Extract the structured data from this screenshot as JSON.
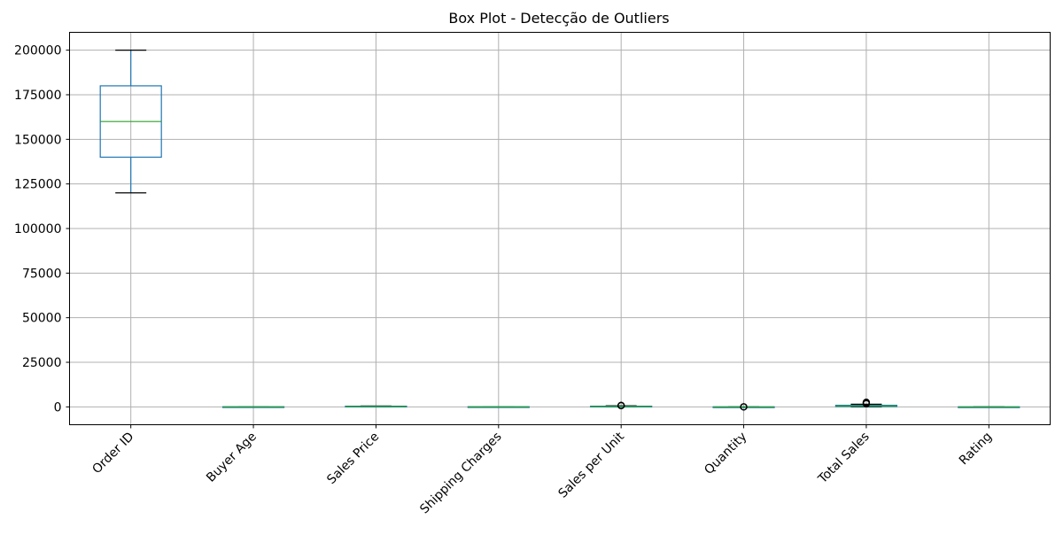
{
  "chart_data": {
    "type": "box",
    "title": "Box Plot - Detecção de Outliers",
    "xlabel": "",
    "ylabel": "",
    "ylim": [
      -10000,
      210000
    ],
    "yticks": [
      0,
      25000,
      50000,
      75000,
      100000,
      125000,
      150000,
      175000,
      200000
    ],
    "grid": true,
    "colors": {
      "box": "#1f77b4",
      "median": "#2ca02c",
      "cap": "#000000",
      "grid": "#b0b0b0",
      "flier": "#000000"
    },
    "categories": [
      "Order ID",
      "Buyer Age",
      "Sales Price",
      "Shipping Charges",
      "Sales per Unit",
      "Quantity",
      "Total Sales",
      "Rating"
    ],
    "boxes": [
      {
        "label": "Order ID",
        "whislo": 120000,
        "q1": 140000,
        "med": 160000,
        "q3": 180000,
        "whishi": 200000,
        "fliers": []
      },
      {
        "label": "Buyer Age",
        "whislo": 18,
        "q1": 30,
        "med": 42,
        "q3": 55,
        "whishi": 70,
        "fliers": []
      },
      {
        "label": "Sales Price",
        "whislo": 10,
        "q1": 100,
        "med": 250,
        "q3": 400,
        "whishi": 500,
        "fliers": []
      },
      {
        "label": "Shipping Charges",
        "whislo": 0,
        "q1": 20,
        "med": 50,
        "q3": 75,
        "whishi": 100,
        "fliers": []
      },
      {
        "label": "Sales per Unit",
        "whislo": 10,
        "q1": 100,
        "med": 250,
        "q3": 400,
        "whishi": 600,
        "fliers": [
          700,
          750,
          800
        ]
      },
      {
        "label": "Quantity",
        "whislo": 1,
        "q1": 2,
        "med": 3,
        "q3": 4,
        "whishi": 6,
        "fliers": [
          8,
          10
        ]
      },
      {
        "label": "Total Sales",
        "whislo": 10,
        "q1": 200,
        "med": 500,
        "q3": 900,
        "whishi": 1500,
        "fliers": [
          1800,
          2200,
          2600
        ]
      },
      {
        "label": "Rating",
        "whislo": 1,
        "q1": 2,
        "med": 3,
        "q3": 4,
        "whishi": 5,
        "fliers": []
      }
    ]
  }
}
